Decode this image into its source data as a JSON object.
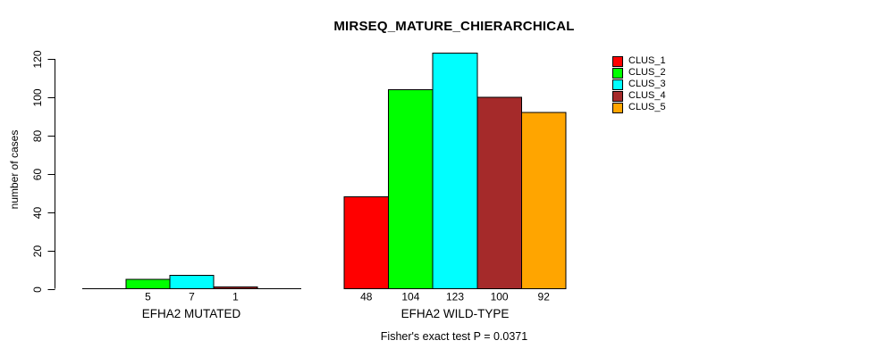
{
  "chart_data": {
    "type": "bar",
    "title": "MIRSEQ_MATURE_CHIERARCHICAL",
    "ylabel": "number of cases",
    "xlabel": "",
    "note": "Fisher's exact test P = 0.0371",
    "ylim": [
      0,
      123
    ],
    "yticks": [
      0,
      20,
      40,
      60,
      80,
      100,
      120
    ],
    "grid": false,
    "legend_position": "top-right",
    "categories": [
      "EFHA2 MUTATED",
      "EFHA2 WILD-TYPE"
    ],
    "series": [
      {
        "name": "CLUS_1",
        "color": "#FF0000",
        "values": [
          0,
          48
        ]
      },
      {
        "name": "CLUS_2",
        "color": "#00FF00",
        "values": [
          5,
          104
        ]
      },
      {
        "name": "CLUS_3",
        "color": "#00FFFF",
        "values": [
          7,
          123
        ]
      },
      {
        "name": "CLUS_4",
        "color": "#A52A2A",
        "values": [
          1,
          100
        ]
      },
      {
        "name": "CLUS_5",
        "color": "#FFA500",
        "values": [
          0,
          92
        ]
      }
    ],
    "value_labels": [
      [
        "",
        "5",
        "7",
        "1",
        ""
      ],
      [
        "48",
        "104",
        "123",
        "100",
        "92"
      ]
    ]
  }
}
